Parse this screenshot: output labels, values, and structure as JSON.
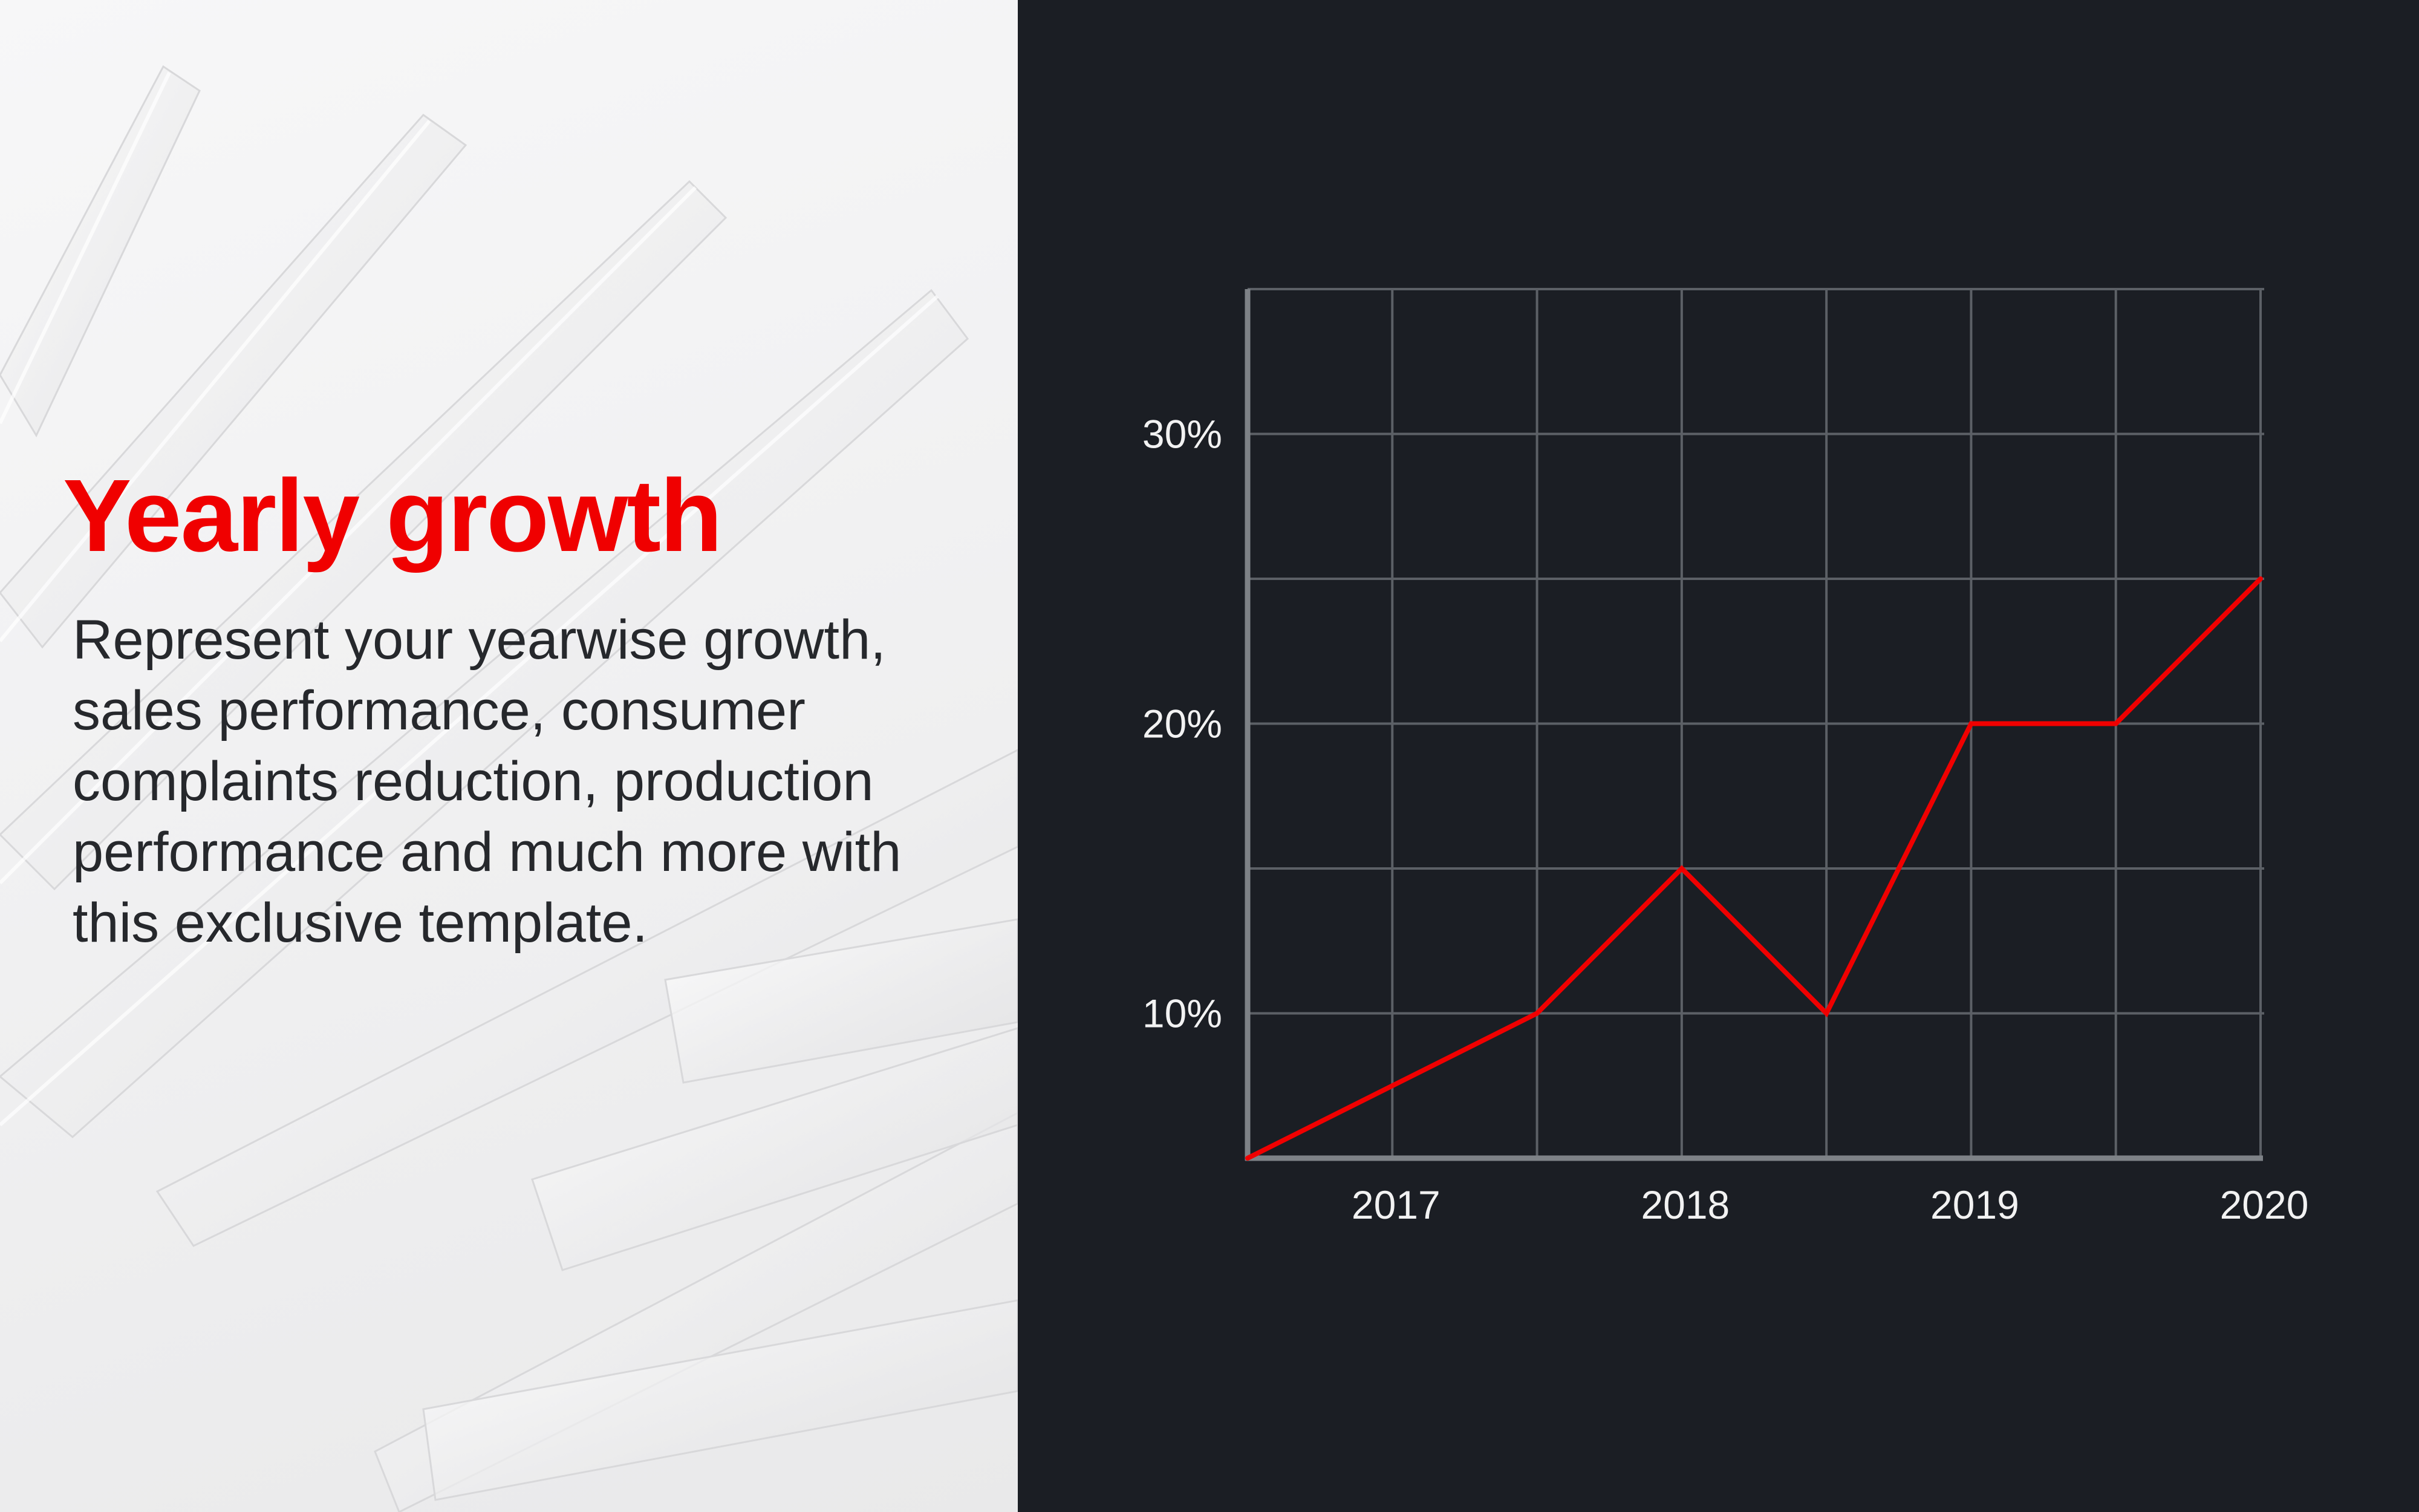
{
  "slide": {
    "title": "Yearly growth",
    "body": "Represent your yearwise growth, sales performance, consumer complaints reduction, production performance and much more with this exclusive template."
  },
  "colors": {
    "accent": "#f00000",
    "chart_background": "#1b1e24",
    "grid": "#5c6066",
    "axis": "#7e8287",
    "text_light": "#f2f2f2",
    "text_dark": "#26282c"
  },
  "chart_data": {
    "type": "line",
    "title": "",
    "xlabel": "",
    "ylabel": "",
    "xlim": [
      2016.5,
      2020
    ],
    "ylim": [
      5,
      35
    ],
    "x_ticks": [
      2017,
      2018,
      2019,
      2020
    ],
    "x_tick_labels": [
      "2017",
      "2018",
      "2019",
      "2020"
    ],
    "y_ticks": [
      10,
      20,
      30
    ],
    "y_tick_labels": [
      "10%",
      "20%",
      "30%"
    ],
    "grid": true,
    "legend": "none",
    "series": [
      {
        "x": [
          2016.5,
          2017.5,
          2018,
          2018.5,
          2019,
          2019.5,
          2020
        ],
        "values": [
          5,
          10,
          15,
          10,
          20,
          20,
          25
        ]
      }
    ]
  }
}
